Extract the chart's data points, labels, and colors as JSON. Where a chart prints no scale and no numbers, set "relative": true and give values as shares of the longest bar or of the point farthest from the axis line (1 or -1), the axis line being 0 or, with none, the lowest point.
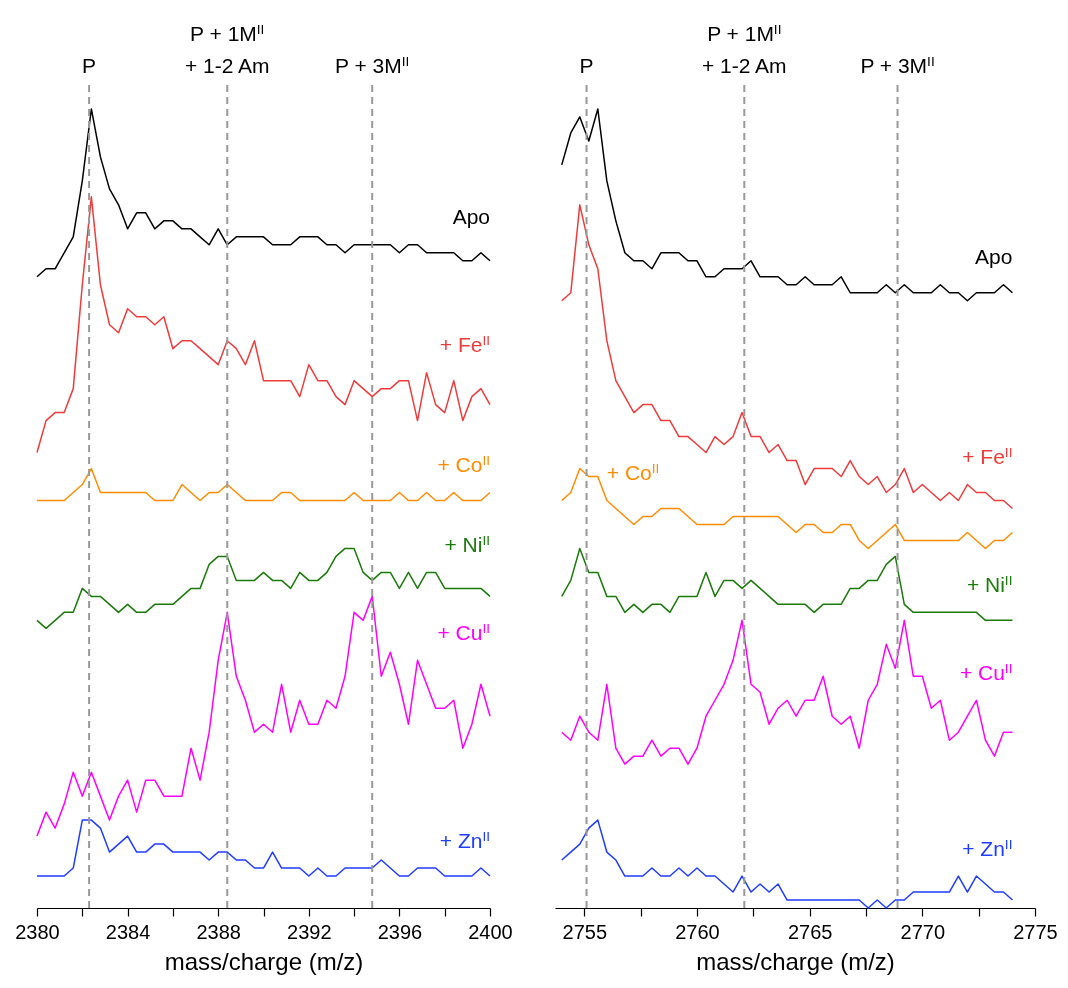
{
  "chart_data": [
    {
      "type": "line",
      "relative": true,
      "xlabel": "mass/charge (m/z)",
      "xlim": [
        2380,
        2400
      ],
      "xticks": [
        2380,
        {
          "value": 2382,
          "label": null
        },
        2384,
        {
          "value": 2386,
          "label": null
        },
        2388,
        {
          "value": 2390,
          "label": null
        },
        2392,
        {
          "value": 2394,
          "label": null
        },
        2396,
        {
          "value": 2398,
          "label": null
        },
        2400
      ],
      "x": [
        2380,
        2380.4,
        2380.8,
        2381.2,
        2381.6,
        2382,
        2382.4,
        2382.8,
        2383.2,
        2383.6,
        2384,
        2384.4,
        2384.8,
        2385.2,
        2385.6,
        2386,
        2386.4,
        2386.8,
        2387.2,
        2387.6,
        2388,
        2388.4,
        2388.8,
        2389.2,
        2389.6,
        2390,
        2390.4,
        2390.8,
        2391.2,
        2391.6,
        2392,
        2392.4,
        2392.8,
        2393.2,
        2393.6,
        2394,
        2394.4,
        2394.8,
        2395.2,
        2395.6,
        2396,
        2396.4,
        2396.8,
        2397.2,
        2397.6,
        2398,
        2398.4,
        2398.8,
        2399.2,
        2399.6,
        2400
      ],
      "series": [
        {
          "name": "Apo",
          "color": "#000000",
          "values": [
            0.79,
            0.8,
            0.8,
            0.82,
            0.84,
            0.91,
            1.0,
            0.94,
            0.9,
            0.88,
            0.85,
            0.87,
            0.87,
            0.85,
            0.86,
            0.86,
            0.85,
            0.85,
            0.84,
            0.83,
            0.85,
            0.83,
            0.84,
            0.84,
            0.84,
            0.84,
            0.83,
            0.83,
            0.83,
            0.84,
            0.84,
            0.84,
            0.83,
            0.83,
            0.82,
            0.83,
            0.83,
            0.83,
            0.83,
            0.83,
            0.82,
            0.83,
            0.83,
            0.82,
            0.82,
            0.82,
            0.82,
            0.81,
            0.81,
            0.82,
            0.81
          ]
        },
        {
          "name": "+ Fe$^{II}$",
          "color": "#ee3b3b",
          "values": [
            0.57,
            0.61,
            0.62,
            0.62,
            0.65,
            0.78,
            0.89,
            0.78,
            0.73,
            0.72,
            0.75,
            0.74,
            0.74,
            0.73,
            0.74,
            0.7,
            0.71,
            0.71,
            0.7,
            0.69,
            0.68,
            0.71,
            0.7,
            0.68,
            0.71,
            0.66,
            0.66,
            0.66,
            0.66,
            0.64,
            0.68,
            0.66,
            0.66,
            0.64,
            0.63,
            0.66,
            0.65,
            0.64,
            0.65,
            0.65,
            0.66,
            0.66,
            0.61,
            0.67,
            0.63,
            0.62,
            0.66,
            0.61,
            0.64,
            0.65,
            0.63
          ]
        },
        {
          "name": "+ Co$^{II}$",
          "color": "#ff8c00",
          "values": [
            0.51,
            0.51,
            0.51,
            0.51,
            0.52,
            0.53,
            0.55,
            0.52,
            0.52,
            0.52,
            0.52,
            0.52,
            0.52,
            0.51,
            0.51,
            0.51,
            0.53,
            0.52,
            0.51,
            0.52,
            0.52,
            0.53,
            0.52,
            0.51,
            0.51,
            0.51,
            0.51,
            0.52,
            0.52,
            0.51,
            0.51,
            0.51,
            0.51,
            0.51,
            0.51,
            0.52,
            0.51,
            0.51,
            0.51,
            0.51,
            0.52,
            0.51,
            0.51,
            0.52,
            0.51,
            0.51,
            0.52,
            0.51,
            0.51,
            0.51,
            0.52
          ]
        },
        {
          "name": "+ Ni$^{II}$",
          "color": "#1a7a0a",
          "values": [
            0.36,
            0.35,
            0.36,
            0.37,
            0.37,
            0.4,
            0.39,
            0.39,
            0.38,
            0.37,
            0.38,
            0.37,
            0.37,
            0.38,
            0.38,
            0.38,
            0.39,
            0.4,
            0.4,
            0.43,
            0.44,
            0.44,
            0.41,
            0.41,
            0.41,
            0.42,
            0.41,
            0.41,
            0.4,
            0.42,
            0.41,
            0.41,
            0.42,
            0.44,
            0.45,
            0.45,
            0.42,
            0.41,
            0.42,
            0.42,
            0.4,
            0.42,
            0.4,
            0.42,
            0.42,
            0.4,
            0.4,
            0.4,
            0.4,
            0.4,
            0.39
          ]
        },
        {
          "name": "+ Cu$^{II}$",
          "color": "#ff00ff",
          "values": [
            0.09,
            0.12,
            0.1,
            0.13,
            0.17,
            0.14,
            0.17,
            0.14,
            0.11,
            0.14,
            0.16,
            0.12,
            0.16,
            0.16,
            0.14,
            0.14,
            0.14,
            0.2,
            0.16,
            0.22,
            0.31,
            0.37,
            0.29,
            0.26,
            0.22,
            0.23,
            0.22,
            0.28,
            0.22,
            0.26,
            0.23,
            0.23,
            0.26,
            0.25,
            0.29,
            0.37,
            0.36,
            0.39,
            0.29,
            0.32,
            0.28,
            0.23,
            0.31,
            0.28,
            0.25,
            0.25,
            0.26,
            0.2,
            0.23,
            0.28,
            0.24
          ]
        },
        {
          "name": "+ Zn$^{II}$",
          "color": "#1f3dff",
          "values": [
            0.04,
            0.04,
            0.04,
            0.04,
            0.05,
            0.11,
            0.11,
            0.1,
            0.07,
            0.08,
            0.09,
            0.07,
            0.07,
            0.08,
            0.08,
            0.07,
            0.07,
            0.07,
            0.07,
            0.06,
            0.07,
            0.07,
            0.06,
            0.06,
            0.05,
            0.05,
            0.07,
            0.05,
            0.05,
            0.05,
            0.04,
            0.05,
            0.04,
            0.04,
            0.05,
            0.05,
            0.05,
            0.05,
            0.06,
            0.05,
            0.04,
            0.04,
            0.05,
            0.05,
            0.05,
            0.04,
            0.04,
            0.04,
            0.04,
            0.05,
            0.04
          ]
        }
      ],
      "ref_lines": [
        {
          "axis": "x",
          "value": 2382.3,
          "label": "P",
          "color": "#999999",
          "line_style": "dashed"
        },
        {
          "axis": "x",
          "value": 2388.4,
          "label": "P + 1M$^{II}$\n+ 1-2 Am",
          "color": "#999999",
          "line_style": "dashed"
        },
        {
          "axis": "x",
          "value": 2394.8,
          "label": "P + 3M$^{II}$",
          "color": "#999999",
          "line_style": "dashed"
        }
      ]
    },
    {
      "type": "line",
      "relative": true,
      "xlabel": "mass/charge (m/z)",
      "xlim": [
        2753.7,
        2775
      ],
      "xticks": [
        2755,
        {
          "value": 2757.5,
          "label": null
        },
        2760,
        {
          "value": 2762.5,
          "label": null
        },
        2765,
        {
          "value": 2767.5,
          "label": null
        },
        2770,
        {
          "value": 2772.5,
          "label": null
        },
        2775
      ],
      "x": [
        2754,
        2754.4,
        2754.8,
        2755.2,
        2755.6,
        2756,
        2756.4,
        2756.8,
        2757.2,
        2757.6,
        2758,
        2758.4,
        2758.8,
        2759.2,
        2759.6,
        2760,
        2760.4,
        2760.8,
        2761.2,
        2761.6,
        2762,
        2762.4,
        2762.8,
        2763.2,
        2763.6,
        2764,
        2764.4,
        2764.8,
        2765.2,
        2765.6,
        2766,
        2766.4,
        2766.8,
        2767.2,
        2767.6,
        2768,
        2768.4,
        2768.8,
        2769.2,
        2769.6,
        2770,
        2770.4,
        2770.8,
        2771.2,
        2771.6,
        2772,
        2772.4,
        2772.8,
        2773.2,
        2773.6,
        2774
      ],
      "series": [
        {
          "name": "Apo",
          "color": "#000000",
          "values": [
            0.93,
            0.97,
            0.99,
            0.96,
            1.0,
            0.91,
            0.86,
            0.82,
            0.81,
            0.81,
            0.8,
            0.82,
            0.82,
            0.82,
            0.81,
            0.81,
            0.79,
            0.79,
            0.8,
            0.8,
            0.8,
            0.81,
            0.79,
            0.79,
            0.79,
            0.78,
            0.78,
            0.79,
            0.78,
            0.78,
            0.78,
            0.79,
            0.77,
            0.77,
            0.77,
            0.77,
            0.78,
            0.77,
            0.78,
            0.77,
            0.77,
            0.77,
            0.78,
            0.77,
            0.77,
            0.76,
            0.77,
            0.77,
            0.77,
            0.78,
            0.77
          ]
        },
        {
          "name": "+ Fe$^{II}$",
          "color": "#ee3b3b",
          "values": [
            0.76,
            0.77,
            0.88,
            0.83,
            0.8,
            0.71,
            0.66,
            0.64,
            0.62,
            0.63,
            0.63,
            0.61,
            0.61,
            0.59,
            0.59,
            0.58,
            0.57,
            0.59,
            0.58,
            0.59,
            0.62,
            0.59,
            0.59,
            0.57,
            0.58,
            0.56,
            0.56,
            0.53,
            0.55,
            0.55,
            0.55,
            0.54,
            0.56,
            0.54,
            0.53,
            0.54,
            0.52,
            0.53,
            0.55,
            0.52,
            0.53,
            0.52,
            0.51,
            0.52,
            0.51,
            0.53,
            0.52,
            0.52,
            0.51,
            0.51,
            0.5
          ]
        },
        {
          "name": "+ Co$^{II}$",
          "color": "#ff8c00",
          "values": [
            0.51,
            0.52,
            0.55,
            0.54,
            0.54,
            0.51,
            0.5,
            0.49,
            0.48,
            0.49,
            0.49,
            0.5,
            0.5,
            0.5,
            0.49,
            0.48,
            0.48,
            0.48,
            0.48,
            0.49,
            0.49,
            0.49,
            0.49,
            0.49,
            0.49,
            0.48,
            0.47,
            0.48,
            0.48,
            0.47,
            0.47,
            0.48,
            0.48,
            0.46,
            0.45,
            0.46,
            0.47,
            0.48,
            0.46,
            0.46,
            0.46,
            0.46,
            0.46,
            0.46,
            0.46,
            0.47,
            0.46,
            0.45,
            0.46,
            0.46,
            0.47
          ]
        },
        {
          "name": "+ Ni$^{II}$",
          "color": "#1a7a0a",
          "values": [
            0.39,
            0.41,
            0.45,
            0.42,
            0.42,
            0.39,
            0.39,
            0.37,
            0.38,
            0.37,
            0.38,
            0.38,
            0.37,
            0.39,
            0.39,
            0.39,
            0.42,
            0.39,
            0.41,
            0.41,
            0.4,
            0.41,
            0.4,
            0.39,
            0.38,
            0.38,
            0.38,
            0.38,
            0.37,
            0.38,
            0.38,
            0.38,
            0.4,
            0.4,
            0.41,
            0.41,
            0.43,
            0.44,
            0.38,
            0.37,
            0.37,
            0.37,
            0.37,
            0.37,
            0.37,
            0.37,
            0.37,
            0.36,
            0.36,
            0.36,
            0.36
          ]
        },
        {
          "name": "+ Cu$^{II}$",
          "color": "#ff00ff",
          "values": [
            0.22,
            0.21,
            0.24,
            0.22,
            0.21,
            0.28,
            0.2,
            0.18,
            0.19,
            0.19,
            0.21,
            0.19,
            0.2,
            0.2,
            0.18,
            0.2,
            0.24,
            0.26,
            0.28,
            0.31,
            0.36,
            0.28,
            0.27,
            0.23,
            0.25,
            0.26,
            0.24,
            0.26,
            0.26,
            0.29,
            0.24,
            0.23,
            0.24,
            0.2,
            0.26,
            0.28,
            0.33,
            0.3,
            0.36,
            0.29,
            0.29,
            0.25,
            0.26,
            0.21,
            0.22,
            0.24,
            0.26,
            0.21,
            0.19,
            0.22,
            0.22
          ]
        },
        {
          "name": "+ Zn$^{II}$",
          "color": "#1f3dff",
          "values": [
            0.06,
            0.07,
            0.08,
            0.1,
            0.11,
            0.07,
            0.06,
            0.04,
            0.04,
            0.04,
            0.05,
            0.04,
            0.04,
            0.05,
            0.04,
            0.05,
            0.04,
            0.04,
            0.03,
            0.02,
            0.04,
            0.02,
            0.03,
            0.02,
            0.03,
            0.01,
            0.01,
            0.01,
            0.01,
            0.01,
            0.01,
            0.01,
            0.01,
            0.01,
            0.0,
            0.01,
            0.0,
            0.01,
            0.01,
            0.02,
            0.02,
            0.02,
            0.02,
            0.02,
            0.04,
            0.02,
            0.04,
            0.03,
            0.02,
            0.02,
            0.01
          ]
        }
      ],
      "ref_lines": [
        {
          "axis": "x",
          "value": 2755.1,
          "label": "P",
          "color": "#999999",
          "line_style": "dashed"
        },
        {
          "axis": "x",
          "value": 2762.1,
          "label": "P + 1M$^{II}$\n+ 1-2 Am",
          "color": "#999999",
          "line_style": "dashed"
        },
        {
          "axis": "x",
          "value": 2768.9,
          "label": "P + 3M$^{II}$",
          "color": "#999999",
          "line_style": "dashed"
        }
      ]
    }
  ]
}
